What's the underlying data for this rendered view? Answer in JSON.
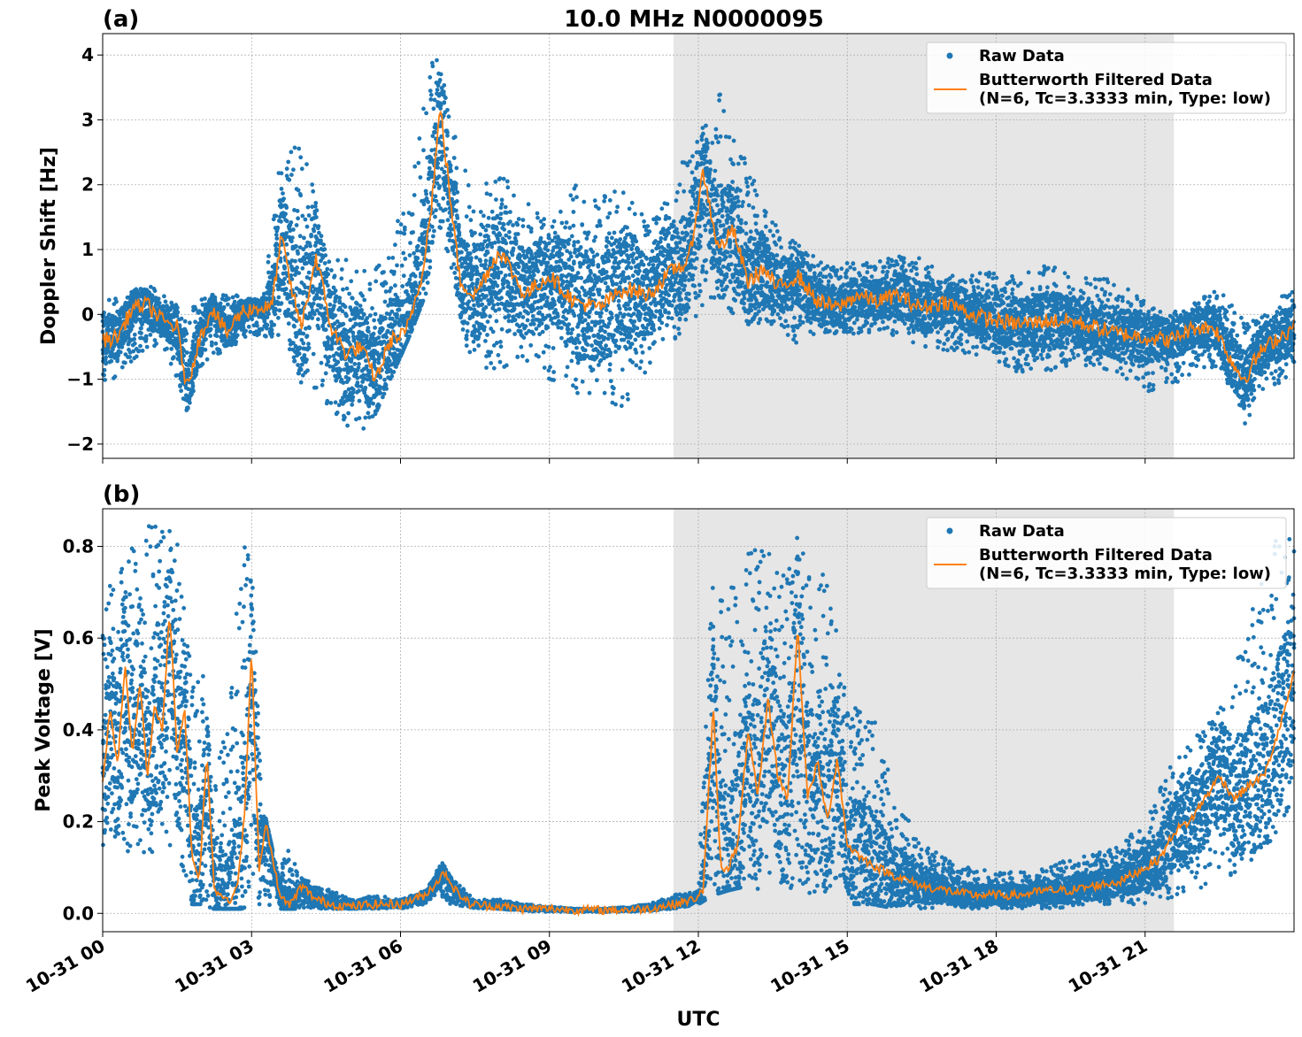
{
  "title": "10.0 MHz N0000095",
  "xlabel": "UTC",
  "panel_labels": [
    "(a)",
    "(b)"
  ],
  "colors": {
    "raw": "#1f77b4",
    "filtered": "#ff7f0e",
    "shade": "#e6e6e6",
    "grid": "#b0b0b0"
  },
  "legend": {
    "raw_label": "Raw Data",
    "filtered_label_line1": "Butterworth Filtered Data",
    "filtered_label_line2": "(N=6, Tc=3.3333 min, Type: low)",
    "placement": "upper right"
  },
  "chart_data": [
    {
      "type": "scatter",
      "panel": "(a)",
      "title": "10.0 MHz N0000095",
      "ylabel": "Doppler Shift [Hz]",
      "xlim_hours": [
        0,
        24
      ],
      "ylim": [
        -2.22,
        4.33
      ],
      "yticks": [
        -2,
        -1,
        0,
        1,
        2,
        3,
        4
      ],
      "ytick_labels": [
        "−2",
        "−1",
        "0",
        "1",
        "2",
        "3",
        "4"
      ],
      "grid": true,
      "shaded_interval_hours": [
        11.5,
        21.58
      ],
      "series": [
        {
          "name": "Raw Data",
          "kind": "points",
          "x": [
            0,
            0.5,
            0.9,
            1.3,
            1.7,
            2.0,
            2.4,
            2.8,
            3.2,
            3.6,
            3.8,
            4.2,
            4.6,
            5.0,
            5.4,
            5.8,
            6.2,
            6.6,
            6.8,
            7.0,
            7.4,
            8.0,
            8.5,
            9.0,
            9.5,
            10.0,
            10.5,
            11.0,
            11.5,
            12.0,
            12.4,
            12.8,
            13.2,
            13.6,
            14.0,
            14.5,
            15.0,
            15.5,
            16.0,
            16.5,
            17.0,
            17.5,
            18.0,
            18.5,
            19.0,
            19.5,
            20.0,
            20.5,
            21.0,
            21.5,
            22.0,
            22.5,
            23.0,
            23.5,
            24.0
          ],
          "y_min": [
            -1.2,
            -0.8,
            -0.5,
            -0.6,
            -1.5,
            -0.8,
            -0.6,
            -0.4,
            -0.3,
            -0.5,
            -0.9,
            -1.2,
            -1.5,
            -1.9,
            -1.7,
            -1.0,
            -0.3,
            0.5,
            1.2,
            0.8,
            -0.8,
            -0.9,
            -0.8,
            -1.0,
            -1.2,
            -1.3,
            -1.5,
            -0.8,
            -0.4,
            0.0,
            0.3,
            -0.1,
            -0.2,
            -0.2,
            -0.5,
            -0.3,
            -0.3,
            -0.3,
            -0.4,
            -0.5,
            -0.6,
            -0.6,
            -0.8,
            -0.9,
            -0.9,
            -0.8,
            -0.8,
            -1.0,
            -1.2,
            -1.1,
            -0.9,
            -0.8,
            -1.7,
            -1.1,
            -1.0
          ],
          "y_max": [
            0.2,
            0.3,
            0.5,
            0.3,
            0.0,
            0.3,
            0.3,
            0.3,
            0.2,
            2.5,
            2.8,
            2.2,
            0.8,
            0.9,
            0.6,
            1.3,
            1.9,
            3.9,
            4.0,
            3.0,
            2.0,
            2.2,
            1.8,
            1.4,
            2.0,
            1.8,
            2.0,
            1.6,
            2.3,
            2.7,
            3.5,
            2.7,
            2.1,
            1.3,
            1.1,
            0.8,
            0.8,
            0.8,
            0.9,
            0.9,
            0.6,
            0.6,
            0.7,
            0.6,
            0.8,
            0.6,
            0.6,
            0.5,
            0.2,
            0.0,
            0.2,
            0.4,
            0.0,
            0.2,
            0.45
          ]
        },
        {
          "name": "Butterworth Filtered Data (N=6, Tc=3.3333 min, Type: low)",
          "kind": "line",
          "x": [
            0,
            0.3,
            0.6,
            0.9,
            1.2,
            1.5,
            1.7,
            1.9,
            2.2,
            2.5,
            2.8,
            3.1,
            3.4,
            3.6,
            3.8,
            4.0,
            4.3,
            4.6,
            4.9,
            5.2,
            5.5,
            5.8,
            6.1,
            6.4,
            6.6,
            6.8,
            7.0,
            7.2,
            7.5,
            8.0,
            8.5,
            9.0,
            9.5,
            10.0,
            10.5,
            11.0,
            11.5,
            11.8,
            12.1,
            12.4,
            12.7,
            13.0,
            13.3,
            13.6,
            14.0,
            14.4,
            14.8,
            15.2,
            15.6,
            16.0,
            16.5,
            17.0,
            17.5,
            18.0,
            18.5,
            19.0,
            19.5,
            20.0,
            20.5,
            21.0,
            21.5,
            22.0,
            22.4,
            22.8,
            23.0,
            23.3,
            23.6,
            24.0
          ],
          "y": [
            -0.4,
            -0.35,
            0.1,
            0.15,
            -0.1,
            -0.2,
            -1.15,
            -0.5,
            0.1,
            -0.3,
            0.05,
            0.1,
            0.1,
            1.2,
            0.4,
            -0.2,
            0.9,
            -0.2,
            -0.6,
            -0.5,
            -1.0,
            -0.4,
            -0.3,
            0.5,
            1.5,
            3.2,
            1.8,
            0.5,
            0.3,
            1.0,
            0.3,
            0.6,
            0.2,
            0.1,
            0.4,
            0.3,
            0.7,
            0.8,
            2.2,
            1.0,
            1.3,
            0.5,
            0.7,
            0.4,
            0.6,
            0.2,
            0.1,
            0.3,
            0.2,
            0.3,
            0.1,
            0.2,
            0.0,
            -0.1,
            -0.15,
            -0.1,
            -0.1,
            -0.2,
            -0.3,
            -0.35,
            -0.4,
            -0.2,
            -0.2,
            -0.8,
            -1.0,
            -0.6,
            -0.4,
            -0.2
          ]
        }
      ]
    },
    {
      "type": "scatter",
      "panel": "(b)",
      "ylabel": "Peak Voltage [V]",
      "xlim_hours": [
        0,
        24
      ],
      "ylim": [
        -0.04,
        0.882
      ],
      "yticks": [
        0.0,
        0.2,
        0.4,
        0.6,
        0.8
      ],
      "ytick_labels": [
        "0.0",
        "0.2",
        "0.4",
        "0.6",
        "0.8"
      ],
      "grid": true,
      "shaded_interval_hours": [
        11.5,
        21.58
      ],
      "series": [
        {
          "name": "Raw Data",
          "kind": "points",
          "x": [
            0,
            0.3,
            0.6,
            0.9,
            1.2,
            1.5,
            1.8,
            2.0,
            2.2,
            2.5,
            2.8,
            3.0,
            3.2,
            3.5,
            3.8,
            4.0,
            4.3,
            4.6,
            5.0,
            5.5,
            6.0,
            6.5,
            6.8,
            7.0,
            7.5,
            8.0,
            8.5,
            9.0,
            9.5,
            10.0,
            10.5,
            11.0,
            11.5,
            12.0,
            12.3,
            12.6,
            13.0,
            13.3,
            13.6,
            14.0,
            14.3,
            14.6,
            15.0,
            15.5,
            16.0,
            16.5,
            17.0,
            17.5,
            18.0,
            18.5,
            19.0,
            19.5,
            20.0,
            20.5,
            21.0,
            21.5,
            22.0,
            22.5,
            23.0,
            23.5,
            24.0
          ],
          "y_min": [
            0.14,
            0.15,
            0.1,
            0.12,
            0.1,
            0.12,
            0.02,
            0.02,
            0.01,
            0.01,
            0.01,
            0.02,
            0.02,
            0.01,
            0.01,
            0.01,
            0.01,
            0.01,
            0.01,
            0.01,
            0.01,
            0.02,
            0.04,
            0.02,
            0.01,
            0.01,
            0.005,
            0.003,
            0.003,
            0.003,
            0.003,
            0.005,
            0.01,
            0.02,
            0.04,
            0.05,
            0.06,
            0.05,
            0.05,
            0.05,
            0.04,
            0.03,
            0.02,
            0.02,
            0.01,
            0.01,
            0.01,
            0.01,
            0.01,
            0.01,
            0.01,
            0.01,
            0.02,
            0.02,
            0.02,
            0.03,
            0.05,
            0.07,
            0.1,
            0.15,
            0.25
          ],
          "y_max": [
            0.68,
            0.83,
            0.8,
            0.85,
            0.86,
            0.82,
            0.55,
            0.55,
            0.3,
            0.4,
            0.8,
            0.81,
            0.25,
            0.1,
            0.15,
            0.08,
            0.06,
            0.05,
            0.03,
            0.04,
            0.03,
            0.05,
            0.12,
            0.08,
            0.03,
            0.03,
            0.02,
            0.015,
            0.01,
            0.01,
            0.015,
            0.02,
            0.04,
            0.05,
            0.83,
            0.7,
            0.79,
            0.82,
            0.75,
            0.84,
            0.71,
            0.76,
            0.45,
            0.45,
            0.25,
            0.15,
            0.12,
            0.1,
            0.09,
            0.09,
            0.1,
            0.12,
            0.13,
            0.15,
            0.2,
            0.32,
            0.4,
            0.5,
            0.6,
            0.8,
            0.87
          ]
        },
        {
          "name": "Butterworth Filtered Data (N=6, Tc=3.3333 min, Type: low)",
          "kind": "line",
          "x": [
            0,
            0.15,
            0.3,
            0.45,
            0.6,
            0.75,
            0.9,
            1.05,
            1.2,
            1.35,
            1.5,
            1.65,
            1.8,
            1.95,
            2.1,
            2.25,
            2.4,
            2.55,
            2.7,
            2.85,
            3.0,
            3.15,
            3.3,
            3.45,
            3.6,
            3.8,
            4.0,
            4.3,
            4.6,
            5.0,
            5.5,
            6.0,
            6.5,
            6.9,
            7.1,
            7.4,
            8.0,
            8.5,
            9.0,
            9.5,
            10.0,
            10.5,
            11.0,
            11.5,
            11.9,
            12.1,
            12.3,
            12.45,
            12.6,
            12.8,
            13.0,
            13.2,
            13.4,
            13.6,
            13.8,
            14.0,
            14.2,
            14.4,
            14.6,
            14.8,
            15.0,
            15.3,
            15.6,
            16.0,
            16.5,
            17.0,
            17.5,
            18.0,
            18.5,
            19.0,
            19.5,
            20.0,
            20.5,
            21.0,
            21.3,
            21.6,
            21.9,
            22.2,
            22.5,
            22.8,
            23.1,
            23.4,
            23.7,
            24.0
          ],
          "y": [
            0.28,
            0.45,
            0.32,
            0.55,
            0.35,
            0.5,
            0.3,
            0.45,
            0.4,
            0.66,
            0.35,
            0.45,
            0.12,
            0.08,
            0.35,
            0.05,
            0.04,
            0.03,
            0.05,
            0.2,
            0.57,
            0.1,
            0.2,
            0.1,
            0.03,
            0.02,
            0.06,
            0.03,
            0.02,
            0.015,
            0.02,
            0.02,
            0.04,
            0.09,
            0.05,
            0.02,
            0.015,
            0.01,
            0.01,
            0.008,
            0.007,
            0.008,
            0.01,
            0.02,
            0.03,
            0.05,
            0.45,
            0.1,
            0.1,
            0.15,
            0.4,
            0.25,
            0.47,
            0.3,
            0.25,
            0.63,
            0.25,
            0.33,
            0.2,
            0.34,
            0.15,
            0.12,
            0.1,
            0.08,
            0.06,
            0.05,
            0.04,
            0.04,
            0.04,
            0.05,
            0.05,
            0.06,
            0.07,
            0.1,
            0.12,
            0.18,
            0.2,
            0.25,
            0.3,
            0.25,
            0.28,
            0.3,
            0.4,
            0.52
          ]
        }
      ]
    }
  ],
  "x_axis": {
    "ticks_hours": [
      0,
      3,
      6,
      9,
      12,
      15,
      18,
      21
    ],
    "tick_labels": [
      "10-31 00",
      "10-31 03",
      "10-31 06",
      "10-31 09",
      "10-31 12",
      "10-31 15",
      "10-31 18",
      "10-31 21"
    ]
  }
}
